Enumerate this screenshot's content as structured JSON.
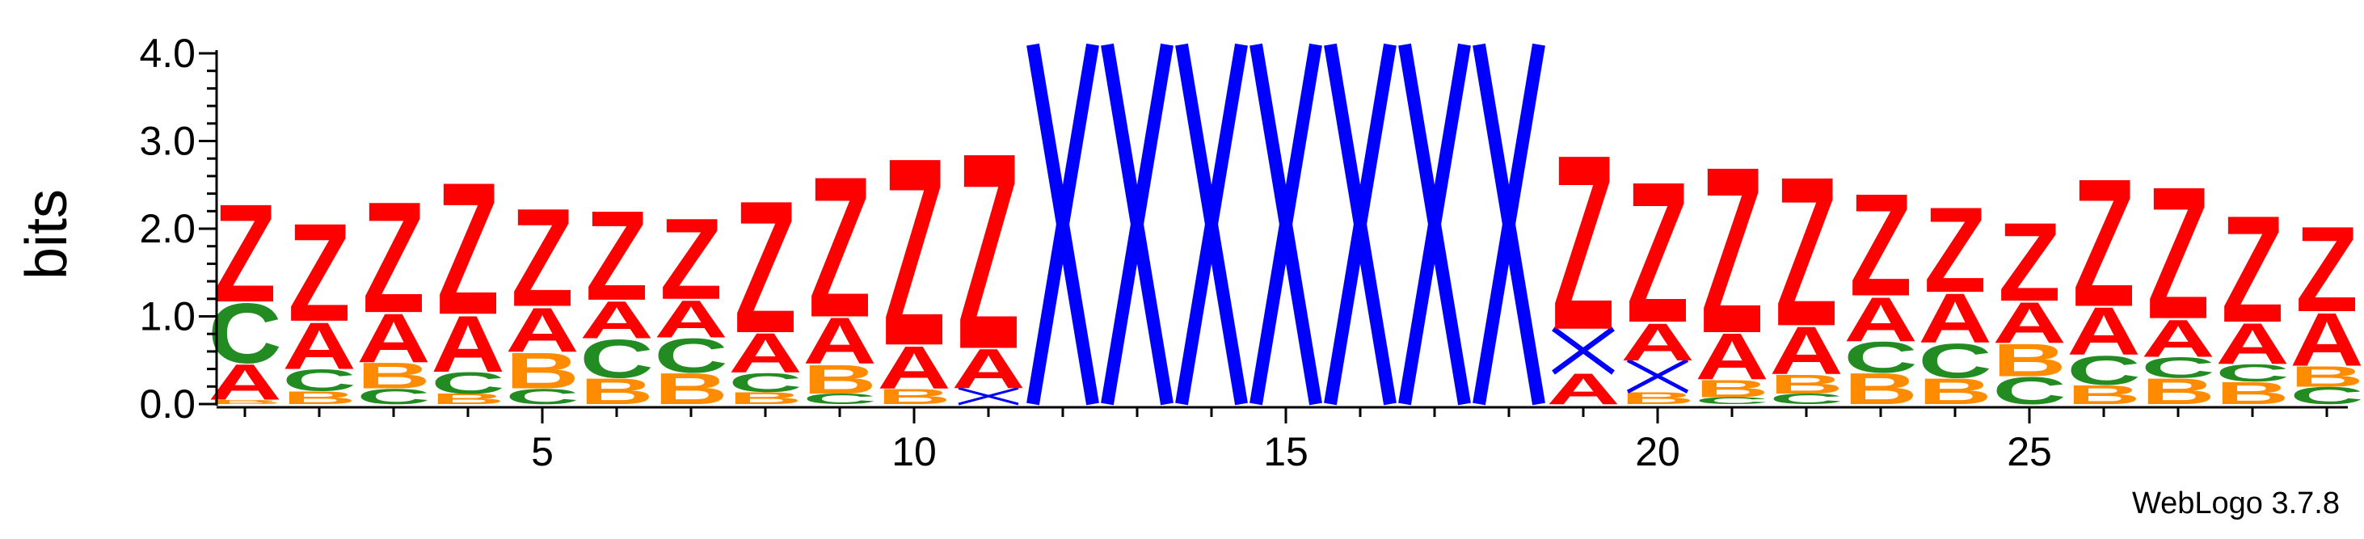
{
  "chart_data": {
    "type": "sequence-logo",
    "ylabel": "bits",
    "ylim": [
      0,
      4.0
    ],
    "y_ticks": [
      "0.0",
      "1.0",
      "2.0",
      "3.0",
      "4.0"
    ],
    "y_tick_values": [
      0,
      1,
      2,
      3,
      4
    ],
    "y_minor_step": 0.2,
    "x_ticks": [
      "5",
      "10",
      "15",
      "20",
      "25"
    ],
    "x_tick_values": [
      5,
      10,
      15,
      20,
      25
    ],
    "x_range": [
      1,
      29
    ],
    "footer": "WebLogo 3.7.8",
    "colors": {
      "Z": "#ff0000",
      "A": "#ff0000",
      "X": "#0000ff",
      "C": "#228b22",
      "B": "#ff8c00"
    },
    "positions": [
      {
        "pos": 1,
        "stack": [
          [
            "B",
            0.05
          ],
          [
            "A",
            0.42
          ],
          [
            "C",
            0.7
          ],
          [
            "Z",
            1.15
          ]
        ]
      },
      {
        "pos": 2,
        "stack": [
          [
            "B",
            0.15
          ],
          [
            "C",
            0.25
          ],
          [
            "A",
            0.55
          ],
          [
            "Z",
            1.15
          ]
        ]
      },
      {
        "pos": 3,
        "stack": [
          [
            "C",
            0.18
          ],
          [
            "B",
            0.3
          ],
          [
            "A",
            0.57
          ],
          [
            "Z",
            1.3
          ]
        ]
      },
      {
        "pos": 4,
        "stack": [
          [
            "B",
            0.12
          ],
          [
            "C",
            0.25
          ],
          [
            "A",
            0.66
          ],
          [
            "Z",
            1.55
          ]
        ]
      },
      {
        "pos": 5,
        "stack": [
          [
            "C",
            0.18
          ],
          [
            "B",
            0.42
          ],
          [
            "A",
            0.52
          ],
          [
            "Z",
            1.15
          ]
        ]
      },
      {
        "pos": 6,
        "stack": [
          [
            "B",
            0.3
          ],
          [
            "C",
            0.45
          ],
          [
            "A",
            0.44
          ],
          [
            "Z",
            1.05
          ]
        ]
      },
      {
        "pos": 7,
        "stack": [
          [
            "B",
            0.36
          ],
          [
            "C",
            0.4
          ],
          [
            "A",
            0.44
          ],
          [
            "Z",
            0.95
          ]
        ]
      },
      {
        "pos": 8,
        "stack": [
          [
            "B",
            0.14
          ],
          [
            "C",
            0.22
          ],
          [
            "A",
            0.46
          ],
          [
            "Z",
            1.55
          ]
        ]
      },
      {
        "pos": 9,
        "stack": [
          [
            "C",
            0.12
          ],
          [
            "B",
            0.34
          ],
          [
            "A",
            0.54
          ],
          [
            "Z",
            1.65
          ]
        ]
      },
      {
        "pos": 10,
        "stack": [
          [
            "B",
            0.18
          ],
          [
            "A",
            0.5
          ],
          [
            "Z",
            2.2
          ]
        ]
      },
      {
        "pos": 11,
        "stack": [
          [
            "X",
            0.18
          ],
          [
            "A",
            0.46
          ],
          [
            "Z",
            2.3
          ]
        ]
      },
      {
        "pos": 12,
        "stack": [
          [
            "X",
            4.1
          ]
        ]
      },
      {
        "pos": 13,
        "stack": [
          [
            "X",
            4.1
          ]
        ]
      },
      {
        "pos": 14,
        "stack": [
          [
            "X",
            4.1
          ]
        ]
      },
      {
        "pos": 15,
        "stack": [
          [
            "X",
            4.1
          ]
        ]
      },
      {
        "pos": 16,
        "stack": [
          [
            "X",
            4.1
          ]
        ]
      },
      {
        "pos": 17,
        "stack": [
          [
            "X",
            4.1
          ]
        ]
      },
      {
        "pos": 18,
        "stack": [
          [
            "X",
            4.1
          ]
        ]
      },
      {
        "pos": 19,
        "stack": [
          [
            "A",
            0.36
          ],
          [
            "X",
            0.5
          ],
          [
            "Z",
            2.05
          ]
        ]
      },
      {
        "pos": 20,
        "stack": [
          [
            "B",
            0.14
          ],
          [
            "X",
            0.36
          ],
          [
            "A",
            0.44
          ],
          [
            "Z",
            1.65
          ]
        ]
      },
      {
        "pos": 21,
        "stack": [
          [
            "C",
            0.08
          ],
          [
            "B",
            0.2
          ],
          [
            "A",
            0.54
          ],
          [
            "Z",
            1.95
          ]
        ]
      },
      {
        "pos": 22,
        "stack": [
          [
            "C",
            0.12
          ],
          [
            "B",
            0.22
          ],
          [
            "A",
            0.56
          ],
          [
            "Z",
            1.75
          ]
        ]
      },
      {
        "pos": 23,
        "stack": [
          [
            "B",
            0.36
          ],
          [
            "C",
            0.36
          ],
          [
            "A",
            0.52
          ],
          [
            "Z",
            1.2
          ]
        ]
      },
      {
        "pos": 24,
        "stack": [
          [
            "B",
            0.3
          ],
          [
            "C",
            0.4
          ],
          [
            "A",
            0.58
          ],
          [
            "Z",
            1.0
          ]
        ]
      },
      {
        "pos": 25,
        "stack": [
          [
            "C",
            0.32
          ],
          [
            "B",
            0.38
          ],
          [
            "A",
            0.48
          ],
          [
            "Z",
            0.92
          ]
        ]
      },
      {
        "pos": 26,
        "stack": [
          [
            "B",
            0.22
          ],
          [
            "C",
            0.34
          ],
          [
            "A",
            0.56
          ],
          [
            "Z",
            1.5
          ]
        ]
      },
      {
        "pos": 27,
        "stack": [
          [
            "B",
            0.3
          ],
          [
            "C",
            0.24
          ],
          [
            "A",
            0.44
          ],
          [
            "Z",
            1.55
          ]
        ]
      },
      {
        "pos": 28,
        "stack": [
          [
            "B",
            0.26
          ],
          [
            "C",
            0.2
          ],
          [
            "A",
            0.48
          ],
          [
            "Z",
            1.25
          ]
        ]
      },
      {
        "pos": 29,
        "stack": [
          [
            "C",
            0.2
          ],
          [
            "B",
            0.24
          ],
          [
            "A",
            0.62
          ],
          [
            "Z",
            1.0
          ]
        ]
      }
    ]
  }
}
